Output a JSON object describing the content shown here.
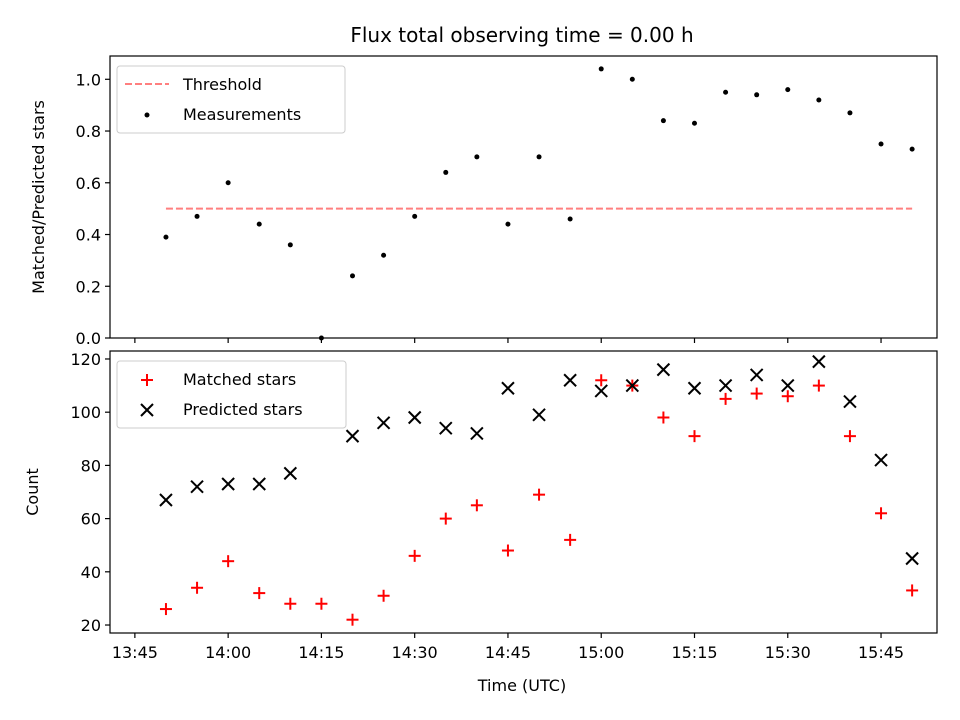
{
  "chart_data": [
    {
      "type": "scatter",
      "title": "Flux total observing time = 0.00 h",
      "xlabel": "",
      "ylabel": "Matched/Predicted stars",
      "ylim": [
        0,
        1.09
      ],
      "yticks": [
        0.0,
        0.2,
        0.4,
        0.6,
        0.8,
        1.0
      ],
      "ytick_labels": [
        "0.0",
        "0.2",
        "0.4",
        "0.6",
        "0.8",
        "1.0"
      ],
      "grid": false,
      "legend_placement": "top-left",
      "x": [
        "13:50",
        "13:55",
        "14:00",
        "14:05",
        "14:10",
        "14:15",
        "14:20",
        "14:25",
        "14:30",
        "14:35",
        "14:40",
        "14:45",
        "14:50",
        "14:55",
        "15:00",
        "15:05",
        "15:10",
        "15:15",
        "15:20",
        "15:25",
        "15:30",
        "15:35",
        "15:40",
        "15:45",
        "15:50"
      ],
      "series": [
        {
          "name": "Threshold",
          "style": "dashed-line",
          "color": "#ff7f7f",
          "x": [
            "13:50",
            "15:50"
          ],
          "values": [
            0.5,
            0.5
          ]
        },
        {
          "name": "Measurements",
          "style": "dot",
          "color": "#000000",
          "values": [
            0.39,
            0.47,
            0.6,
            0.44,
            0.36,
            0.0,
            0.24,
            0.32,
            0.47,
            0.64,
            0.7,
            0.44,
            0.7,
            0.46,
            1.04,
            1.0,
            0.84,
            0.83,
            0.95,
            0.94,
            0.96,
            0.92,
            0.87,
            0.75,
            0.73
          ]
        }
      ]
    },
    {
      "type": "scatter",
      "title": "",
      "xlabel": "Time (UTC)",
      "ylabel": "Count",
      "ylim": [
        17,
        123
      ],
      "yticks": [
        20,
        40,
        60,
        80,
        100,
        120
      ],
      "ytick_labels": [
        "20",
        "40",
        "60",
        "80",
        "100",
        "120"
      ],
      "xticks": [
        "13:45",
        "14:00",
        "14:15",
        "14:30",
        "14:45",
        "15:00",
        "15:15",
        "15:30",
        "15:45"
      ],
      "grid": false,
      "legend_placement": "top-left",
      "x": [
        "13:50",
        "13:55",
        "14:00",
        "14:05",
        "14:10",
        "14:15",
        "14:20",
        "14:25",
        "14:30",
        "14:35",
        "14:40",
        "14:45",
        "14:50",
        "14:55",
        "15:00",
        "15:05",
        "15:10",
        "15:15",
        "15:20",
        "15:25",
        "15:30",
        "15:35",
        "15:40",
        "15:45",
        "15:50"
      ],
      "series": [
        {
          "name": "Matched stars",
          "style": "plus",
          "color": "#ff0000",
          "values": [
            26,
            34,
            44,
            32,
            28,
            28,
            22,
            31,
            46,
            60,
            65,
            48,
            69,
            52,
            112,
            110,
            98,
            91,
            105,
            107,
            106,
            110,
            91,
            62,
            33
          ]
        },
        {
          "name": "Predicted stars",
          "style": "x",
          "color": "#000000",
          "values": [
            67,
            72,
            73,
            73,
            77,
            null,
            91,
            96,
            98,
            94,
            92,
            109,
            99,
            112,
            108,
            110,
            116,
            109,
            110,
            114,
            110,
            119,
            104,
            82,
            45
          ]
        }
      ]
    }
  ]
}
